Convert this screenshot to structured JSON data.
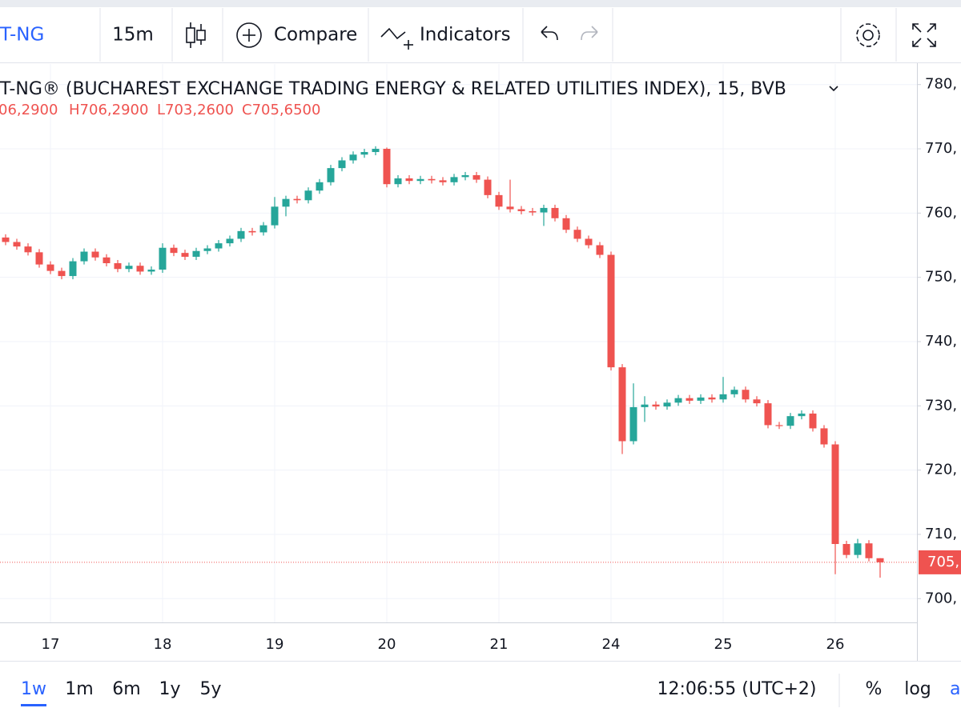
{
  "toolbar": {
    "symbol": "T-NG",
    "interval": "15m",
    "compare": "Compare",
    "indicators": "Indicators"
  },
  "chart_data": {
    "type": "candlestick",
    "title": "T-NG® (BUCHAREST EXCHANGE TRADING ENERGY & RELATED UTILITIES INDEX), 15, BVB",
    "ohlc_labels": [
      "06,2900",
      "H706,2900",
      "L703,2600",
      "C705,6500"
    ],
    "categories": [
      null,
      null,
      null,
      null,
      "17",
      null,
      null,
      null,
      null,
      null,
      null,
      null,
      null,
      null,
      "18",
      null,
      null,
      null,
      null,
      null,
      null,
      null,
      null,
      null,
      "19",
      null,
      null,
      null,
      null,
      null,
      null,
      null,
      null,
      null,
      "20",
      null,
      null,
      null,
      null,
      null,
      null,
      null,
      null,
      null,
      "21",
      null,
      null,
      null,
      null,
      null,
      null,
      null,
      null,
      null,
      "24",
      null,
      null,
      null,
      null,
      null,
      null,
      null,
      null,
      null,
      "25",
      null,
      null,
      null,
      null,
      null,
      null,
      null,
      null,
      null,
      "26",
      null,
      null,
      null,
      null
    ],
    "open": [
      756.2,
      755.5,
      754.8,
      753.9,
      752.0,
      751.0,
      750.2,
      752.5,
      754.0,
      753.1,
      752.2,
      751.3,
      751.8,
      750.9,
      751.2,
      754.6,
      753.8,
      753.2,
      754.1,
      754.5,
      755.3,
      756.0,
      757.2,
      757.0,
      758.1,
      761.0,
      762.2,
      762.0,
      763.5,
      764.8,
      767.0,
      768.2,
      769.1,
      769.5,
      770.0,
      764.5,
      765.4,
      765.0,
      765.3,
      765.1,
      764.8,
      765.6,
      765.9,
      765.2,
      762.8,
      761.0,
      760.6,
      760.3,
      760.1,
      760.8,
      759.2,
      757.4,
      756.0,
      755.0,
      753.5,
      736.0,
      724.5,
      729.8,
      730.2,
      729.9,
      730.5,
      731.2,
      730.8,
      731.3,
      731.0,
      731.8,
      732.5,
      731.0,
      730.4,
      727.0,
      726.9,
      728.4,
      728.8,
      726.5,
      724.0,
      708.5,
      706.8,
      708.6,
      706.29
    ],
    "high": [
      756.7,
      756.0,
      755.3,
      754.4,
      752.5,
      751.5,
      753.0,
      754.5,
      754.5,
      753.6,
      752.7,
      752.3,
      752.3,
      751.7,
      755.3,
      755.1,
      754.3,
      754.6,
      755.0,
      755.8,
      756.5,
      757.7,
      757.7,
      758.6,
      762.5,
      762.7,
      762.7,
      764.0,
      765.3,
      767.5,
      768.7,
      769.6,
      770.0,
      770.4,
      770.2,
      765.9,
      765.9,
      765.8,
      765.8,
      765.6,
      766.1,
      766.4,
      766.4,
      765.7,
      763.3,
      765.2,
      761.1,
      760.8,
      761.3,
      761.3,
      759.7,
      757.9,
      756.5,
      755.5,
      754.0,
      736.5,
      733.5,
      731.5,
      730.7,
      731.0,
      731.7,
      731.7,
      731.8,
      731.8,
      734.5,
      733.0,
      733.0,
      731.5,
      730.9,
      727.5,
      728.9,
      729.3,
      729.3,
      727.0,
      724.5,
      709.0,
      709.3,
      709.1,
      706.29
    ],
    "low": [
      755.0,
      754.3,
      753.4,
      751.5,
      750.5,
      749.7,
      749.7,
      752.0,
      752.6,
      751.7,
      750.8,
      750.8,
      750.4,
      750.4,
      750.7,
      753.3,
      752.7,
      752.7,
      753.6,
      754.0,
      754.8,
      755.5,
      756.5,
      756.5,
      757.6,
      759.5,
      761.5,
      761.5,
      763.0,
      764.3,
      766.5,
      767.7,
      768.6,
      769.0,
      764.0,
      764.0,
      764.5,
      764.5,
      764.6,
      764.3,
      764.3,
      765.1,
      764.7,
      762.3,
      760.5,
      760.1,
      759.8,
      759.6,
      758.0,
      758.7,
      756.9,
      755.5,
      754.5,
      753.0,
      735.5,
      722.5,
      724.0,
      727.5,
      729.4,
      729.4,
      730.0,
      730.3,
      730.3,
      730.5,
      730.5,
      731.3,
      730.5,
      729.9,
      726.5,
      726.4,
      726.4,
      727.9,
      726.0,
      723.5,
      703.8,
      706.3,
      706.3,
      705.8,
      703.26
    ],
    "close": [
      755.5,
      754.8,
      753.9,
      752.0,
      751.0,
      750.2,
      752.5,
      754.0,
      753.1,
      752.2,
      751.3,
      751.8,
      750.9,
      751.2,
      754.6,
      753.8,
      753.2,
      754.1,
      754.5,
      755.3,
      756.0,
      757.2,
      757.0,
      758.1,
      761.0,
      762.2,
      762.0,
      763.5,
      764.8,
      767.0,
      768.2,
      769.1,
      769.5,
      770.0,
      764.5,
      765.4,
      765.0,
      765.3,
      765.1,
      764.8,
      765.6,
      765.9,
      765.2,
      762.8,
      761.0,
      760.6,
      760.3,
      760.1,
      760.8,
      759.2,
      757.4,
      756.0,
      755.0,
      753.5,
      736.0,
      724.5,
      729.8,
      730.2,
      729.9,
      730.5,
      731.2,
      730.8,
      731.3,
      731.0,
      731.8,
      732.5,
      731.0,
      730.4,
      727.0,
      726.9,
      728.4,
      728.8,
      726.5,
      724.0,
      708.5,
      706.8,
      708.6,
      706.29,
      705.65
    ],
    "up_color": "#26a69a",
    "down_color": "#ef5350",
    "ylim": [
      696.3,
      783.2
    ],
    "yticks": [
      {
        "value": 700,
        "label": "700,"
      },
      {
        "value": 710,
        "label": "710,"
      },
      {
        "value": 720,
        "label": "720,"
      },
      {
        "value": 730,
        "label": "730,"
      },
      {
        "value": 740,
        "label": "740,"
      },
      {
        "value": 750,
        "label": "750,"
      },
      {
        "value": 760,
        "label": "760,"
      },
      {
        "value": 770,
        "label": "770,"
      },
      {
        "value": 780,
        "label": "780,"
      }
    ],
    "grid": true,
    "last_price_label": "705,"
  },
  "bottom_bar": {
    "ranges": [
      "1w",
      "1m",
      "6m",
      "1y",
      "5y"
    ],
    "time": "12:06:55 (UTC+2)",
    "percent": "%",
    "log": "log",
    "auto": "a"
  }
}
